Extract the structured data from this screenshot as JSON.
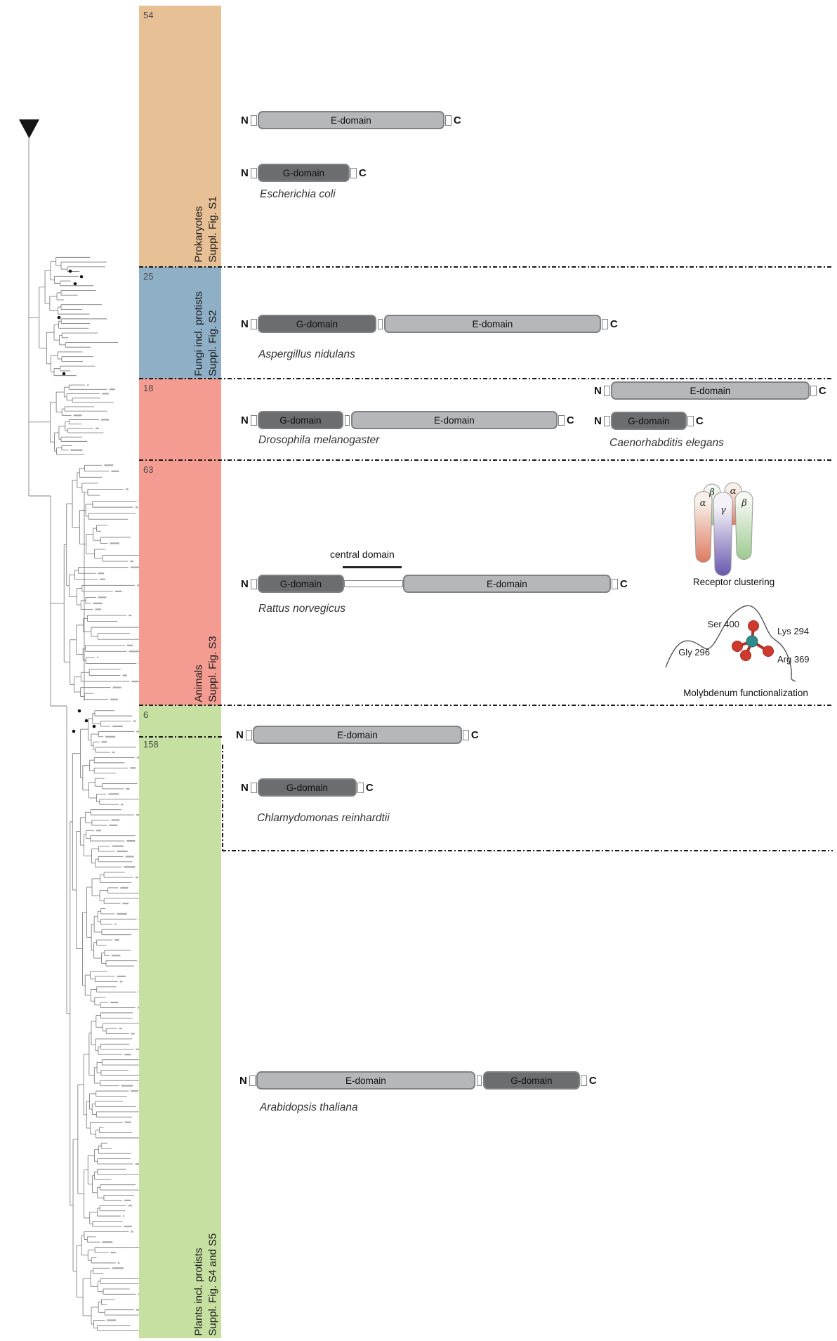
{
  "bands": [
    {
      "count": "54",
      "group": "Prokaryotes",
      "fig": "Suppl. Fig. S1"
    },
    {
      "count": "25",
      "group": "Fungi incl. protists",
      "fig": "Suppl. Fig. S2"
    },
    {
      "count": "18",
      "group": "",
      "fig": ""
    },
    {
      "count": "63",
      "group": "Animals",
      "fig": "Suppl. Fig. S3"
    },
    {
      "count": "6",
      "group": "",
      "fig": ""
    },
    {
      "count": "158",
      "group": "Plants incl. protists",
      "fig": "Suppl. Fig. S4 and S5"
    }
  ],
  "terminals": {
    "n": "N",
    "c": "C"
  },
  "domains": {
    "e": "E-domain",
    "g": "G-domain",
    "central": "central domain"
  },
  "species": {
    "ecoli": "Escherichia coli",
    "aspergillus": "Aspergillus nidulans",
    "drosophila": "Drosophila melanogaster",
    "celegans": "Caenorhabditis elegans",
    "rattus": "Rattus norvegicus",
    "chlamydomonas": "Chlamydomonas reinhardtii",
    "arabidopsis": "Arabidopsis thaliana"
  },
  "receptor": {
    "caption": "Receptor clustering",
    "alpha": "α",
    "beta": "β",
    "gamma": "γ"
  },
  "molybdenum": {
    "caption": "Molybdenum functionalization",
    "ser": "Ser 400",
    "lys": "Lys 294",
    "gly": "Gly 296",
    "arg": "Arg 369"
  },
  "colors": {
    "band-prokaryotes": "#e7c095",
    "band-fungi": "#8fafc7",
    "band-animals": "#f49c92",
    "band-plants": "#c6e0a2",
    "e-fill": "#b5b7b9",
    "g-fill": "#6b6d6f",
    "seg-border": "#7f8184",
    "dash": "#1a1a1a",
    "tree": "#828282",
    "receptor-purple": "#6a57ae",
    "receptor-salmon": "#dd7a5f",
    "receptor-green": "#9ec98e",
    "mo-core": "#2e8b8b",
    "mo-oxygen": "#cf3a2e"
  }
}
